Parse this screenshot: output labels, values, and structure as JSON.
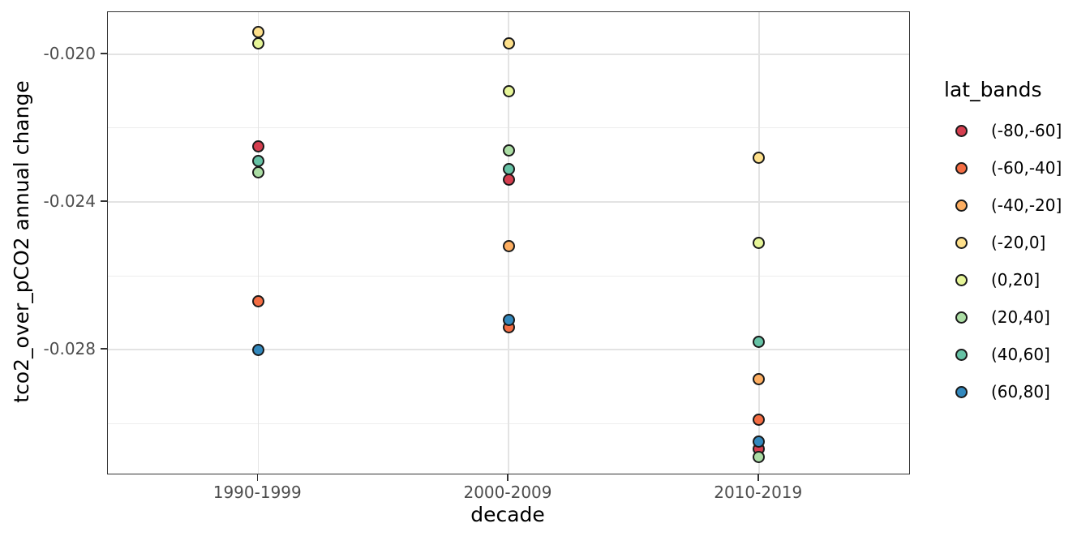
{
  "chart_data": {
    "type": "scatter",
    "title": "",
    "xlabel": "decade",
    "ylabel": "tco2_over_pCO2 annual change",
    "legend_title": "lat_bands",
    "legend_position": "right",
    "grid": true,
    "panel_background": "#ffffff",
    "gridline_color": "#e3e3e3",
    "panel_border_color": "#333333",
    "tick_label_color": "#4d4d4d",
    "categories": [
      "1990-1999",
      "2000-2009",
      "2010-2019"
    ],
    "ylim": [
      -0.03136,
      -0.01886
    ],
    "y_major_ticks": [
      -0.02,
      -0.024,
      -0.028
    ],
    "y_tick_labels": [
      "-0.020",
      "-0.024",
      "-0.028"
    ],
    "y_minor_gridlines": [
      -0.022,
      -0.026,
      -0.03
    ],
    "series": [
      {
        "name": "(-80,-60]",
        "color": "#D53E4F",
        "values": [
          -0.0225,
          -0.0234,
          -0.0307
        ]
      },
      {
        "name": "(-60,-40]",
        "color": "#F46D43",
        "values": [
          -0.0267,
          -0.0274,
          -0.0299
        ]
      },
      {
        "name": "(-40,-20]",
        "color": "#FDAE61",
        "values": [
          null,
          -0.0252,
          -0.0288
        ]
      },
      {
        "name": "(-20,0]",
        "color": "#FEE08B",
        "values": [
          -0.0194,
          -0.0197,
          -0.0228
        ]
      },
      {
        "name": "(0,20]",
        "color": "#E6F598",
        "values": [
          -0.0197,
          -0.021,
          -0.0251
        ]
      },
      {
        "name": "(20,40]",
        "color": "#ABDDA4",
        "values": [
          -0.0232,
          -0.0226,
          -0.0309
        ]
      },
      {
        "name": "(40,60]",
        "color": "#66C2A5",
        "values": [
          -0.0229,
          -0.0231,
          -0.0278
        ]
      },
      {
        "name": "(60,80]",
        "color": "#3288BD",
        "values": [
          -0.028,
          -0.0272,
          -0.0305
        ]
      }
    ]
  }
}
